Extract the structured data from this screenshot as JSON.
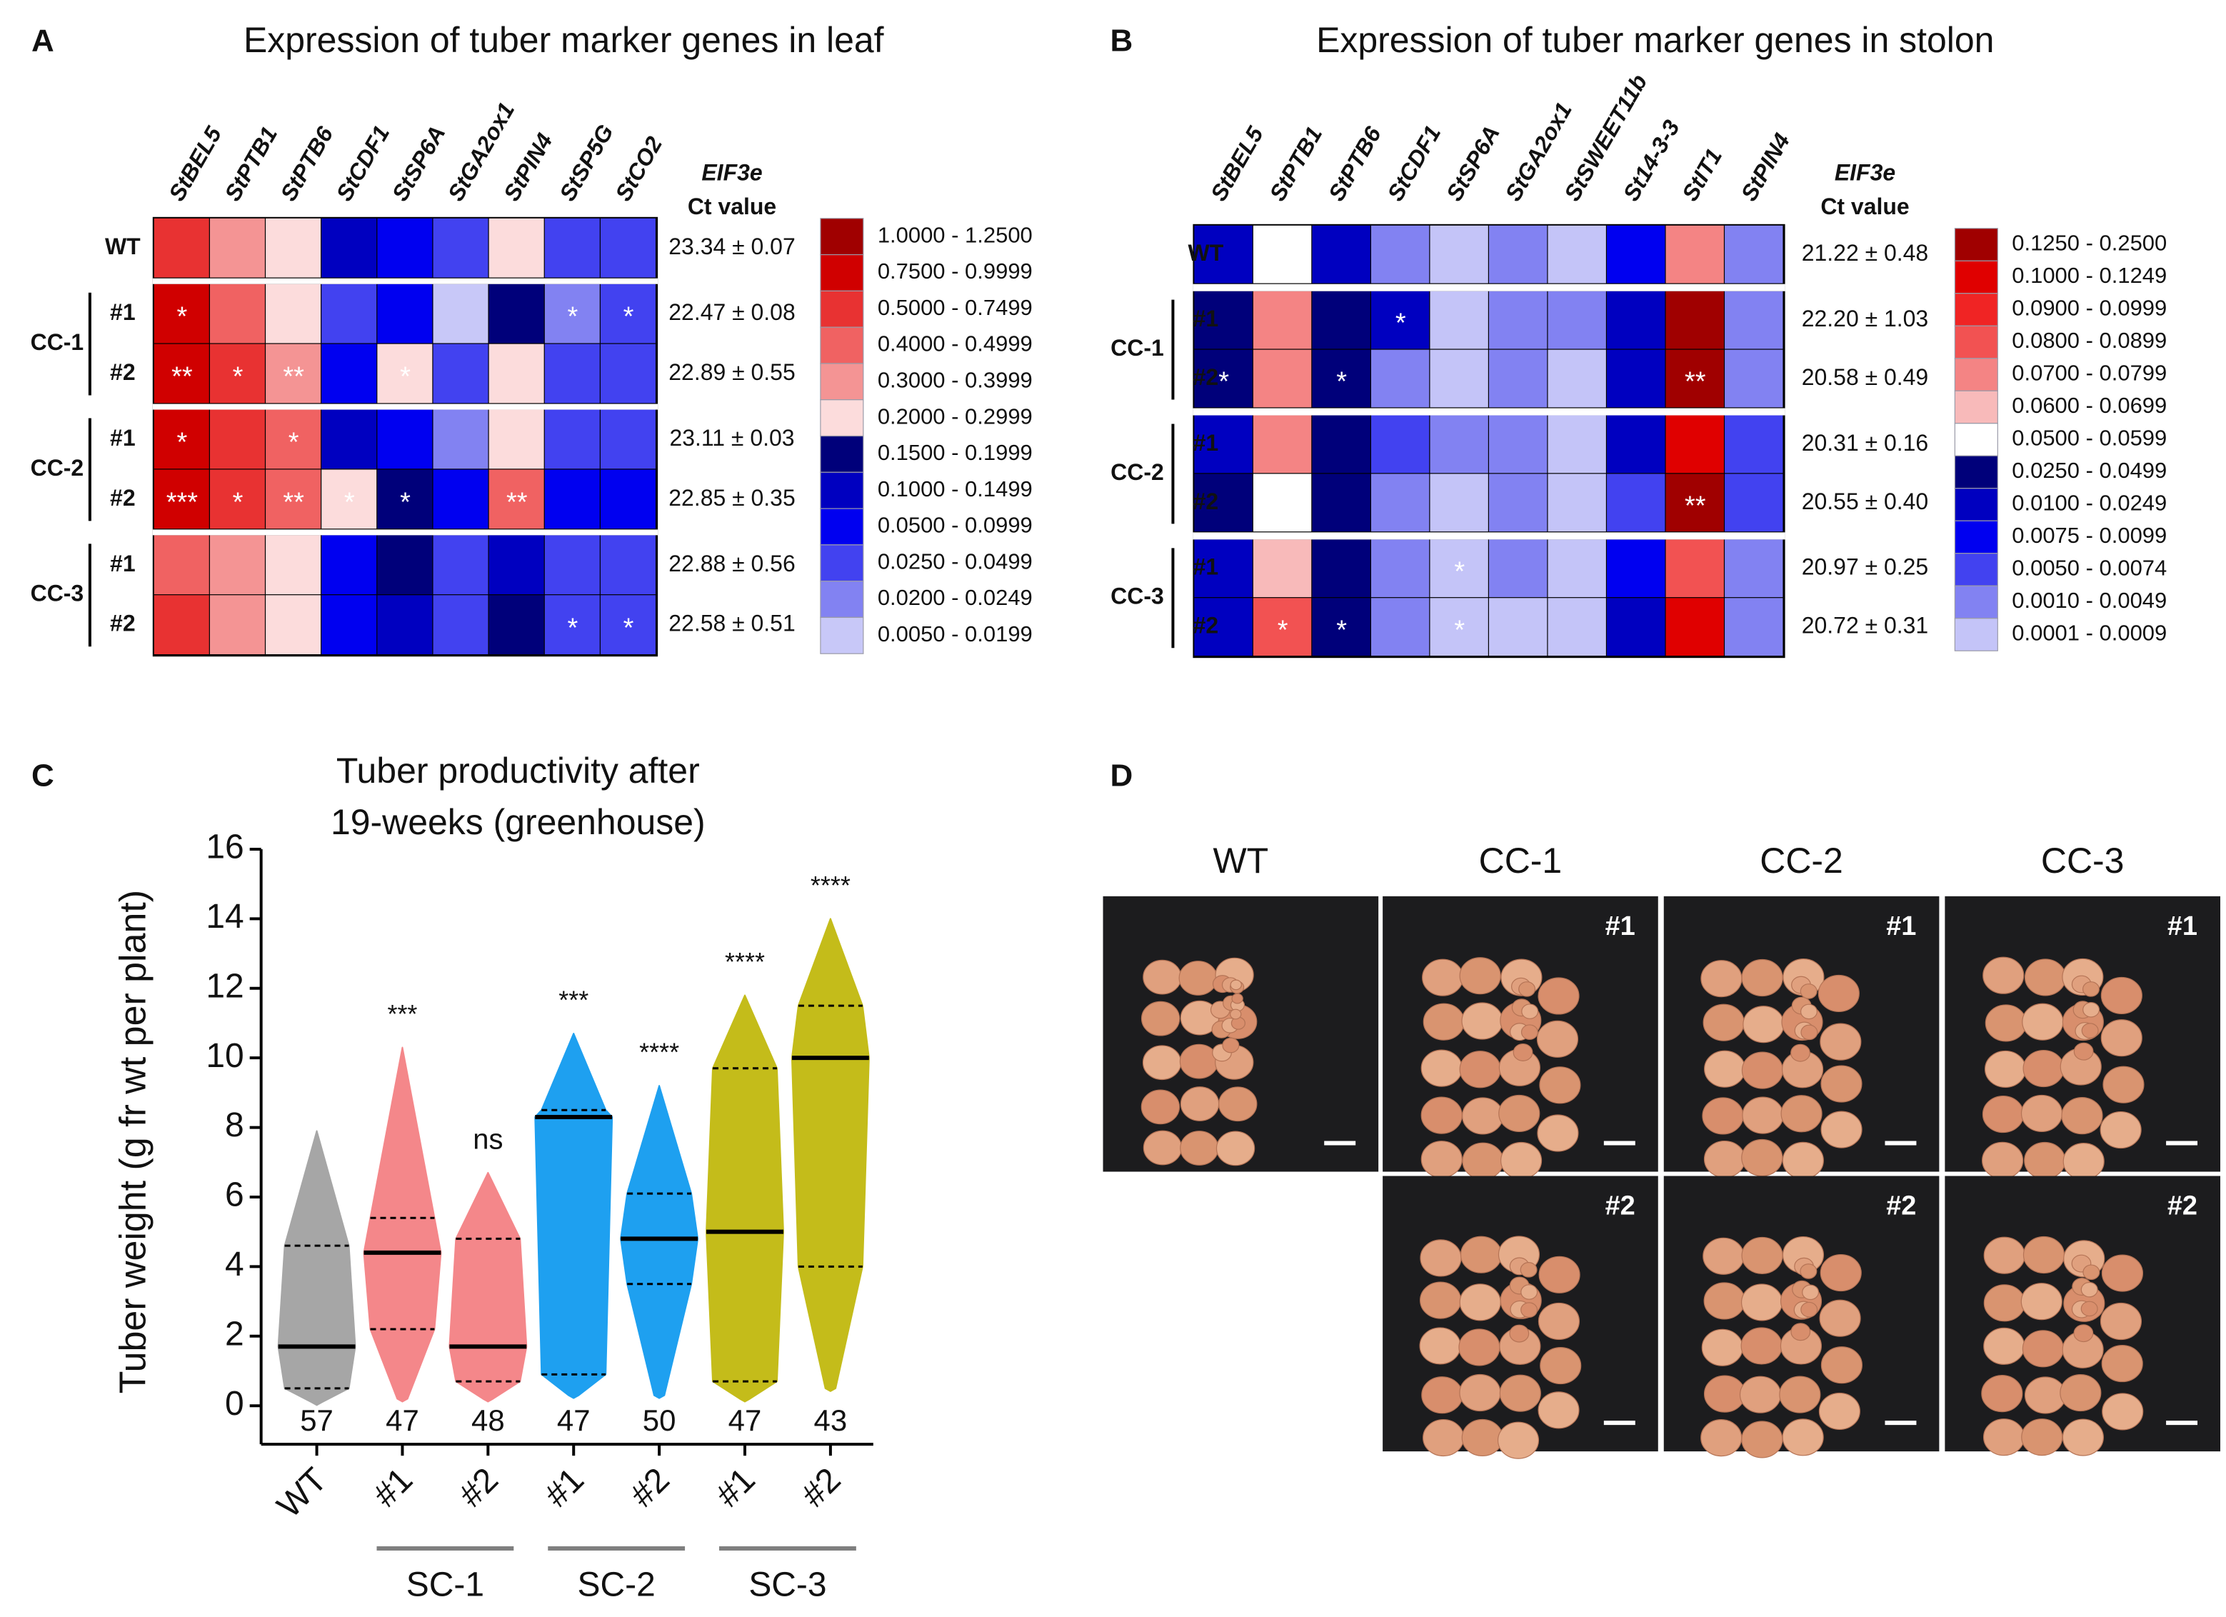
{
  "chart_data": [
    {
      "type": "heatmap",
      "title": "Expression of tuber marker genes in leaf",
      "columns": [
        "StBEL5",
        "StPTB1",
        "StPTB6",
        "StCDF1",
        "StSP6A",
        "StGA2ox1",
        "StPIN4",
        "StSP5G",
        "StCO2"
      ],
      "row_labels": [
        "WT",
        "#1",
        "#2",
        "#1",
        "#2",
        "#1",
        "#2"
      ],
      "group_labels": [
        "CC-1",
        "CC-2",
        "CC-3"
      ],
      "values": [
        [
          0.6,
          0.35,
          0.25,
          0.12,
          0.07,
          0.04,
          0.25,
          0.04,
          0.04
        ],
        [
          0.9,
          0.45,
          0.25,
          0.04,
          0.07,
          0.012,
          0.17,
          0.022,
          0.04
        ],
        [
          0.9,
          0.6,
          0.35,
          0.07,
          0.25,
          0.04,
          0.25,
          0.04,
          0.04
        ],
        [
          0.9,
          0.6,
          0.45,
          0.12,
          0.07,
          0.022,
          0.25,
          0.04,
          0.04
        ],
        [
          0.9,
          0.6,
          0.45,
          0.25,
          0.17,
          0.07,
          0.45,
          0.07,
          0.07
        ],
        [
          0.45,
          0.35,
          0.25,
          0.07,
          0.17,
          0.04,
          0.12,
          0.04,
          0.04
        ],
        [
          0.6,
          0.35,
          0.25,
          0.07,
          0.12,
          0.04,
          0.17,
          0.04,
          0.04
        ]
      ],
      "stars": [
        [
          null,
          null,
          null,
          null,
          null,
          null,
          null,
          null,
          null
        ],
        [
          "*",
          null,
          null,
          null,
          null,
          null,
          null,
          "*",
          "*"
        ],
        [
          "**",
          "*",
          "**",
          null,
          "*",
          null,
          null,
          null,
          null
        ],
        [
          "*",
          null,
          "*",
          null,
          null,
          null,
          null,
          null,
          null
        ],
        [
          "***",
          "*",
          "**",
          "*",
          "*",
          null,
          "**",
          null,
          null
        ],
        [
          null,
          null,
          null,
          null,
          null,
          null,
          null,
          null,
          null
        ],
        [
          null,
          null,
          null,
          null,
          null,
          null,
          null,
          "*",
          "*"
        ]
      ],
      "ct_header": [
        "EIF3e",
        "Ct value"
      ],
      "ct_values": [
        "23.34 ± 0.07",
        "22.47 ± 0.08",
        "22.89 ± 0.55",
        "23.11 ± 0.03",
        "22.85 ± 0.35",
        "22.88 ± 0.56",
        "22.58 ± 0.51"
      ],
      "legend": [
        {
          "label": "1.0000 - 1.2500",
          "color": "#a00000"
        },
        {
          "label": "0.7500 - 0.9999",
          "color": "#d00000"
        },
        {
          "label": "0.5000 - 0.7499",
          "color": "#e83232"
        },
        {
          "label": "0.4000 - 0.4999",
          "color": "#f06262"
        },
        {
          "label": "0.3000 - 0.3999",
          "color": "#f49494"
        },
        {
          "label": "0.2000 - 0.2999",
          "color": "#fcdcdc"
        },
        {
          "label": "0.1500 - 0.1999",
          "color": "#00007a"
        },
        {
          "label": "0.1000 - 0.1499",
          "color": "#0000c0"
        },
        {
          "label": "0.0500 - 0.0999",
          "color": "#0000f0"
        },
        {
          "label": "0.0250 - 0.0499",
          "color": "#4242f0"
        },
        {
          "label": "0.0200 - 0.0249",
          "color": "#8282f2"
        },
        {
          "label": "0.0050 - 0.0199",
          "color": "#c8c8f8"
        }
      ]
    },
    {
      "type": "heatmap",
      "title": "Expression of tuber marker genes in stolon",
      "columns": [
        "StBEL5",
        "StPTB1",
        "StPTB6",
        "StCDF1",
        "StSP6A",
        "StGA2ox1",
        "StSWEET11b",
        "St14-3-3",
        "StIT1",
        "StPIN4"
      ],
      "row_labels": [
        "WT",
        "#1",
        "#2",
        "#1",
        "#2",
        "#1",
        "#2"
      ],
      "group_labels": [
        "CC-1",
        "CC-2",
        "CC-3"
      ],
      "values": [
        [
          0.015,
          0.055,
          0.015,
          0.003,
          0.0005,
          0.003,
          0.0005,
          0.008,
          0.075,
          0.003
        ],
        [
          0.03,
          0.075,
          0.03,
          0.015,
          0.0005,
          0.003,
          0.003,
          0.015,
          0.15,
          0.003
        ],
        [
          0.03,
          0.075,
          0.03,
          0.003,
          0.0005,
          0.003,
          0.0005,
          0.015,
          0.15,
          0.003
        ],
        [
          0.015,
          0.075,
          0.03,
          0.006,
          0.003,
          0.003,
          0.0005,
          0.015,
          0.11,
          0.006
        ],
        [
          0.03,
          0.055,
          0.03,
          0.003,
          0.0005,
          0.003,
          0.0005,
          0.006,
          0.15,
          0.006
        ],
        [
          0.015,
          0.065,
          0.03,
          0.003,
          0.0005,
          0.003,
          0.0005,
          0.008,
          0.085,
          0.003
        ],
        [
          0.015,
          0.085,
          0.03,
          0.003,
          0.0005,
          0.0005,
          0.0005,
          0.015,
          0.11,
          0.003
        ]
      ],
      "stars": [
        [
          null,
          null,
          null,
          null,
          null,
          null,
          null,
          null,
          null,
          null
        ],
        [
          null,
          null,
          null,
          "*",
          null,
          null,
          null,
          null,
          null,
          null
        ],
        [
          "*",
          null,
          "*",
          null,
          null,
          null,
          null,
          null,
          "**",
          null
        ],
        [
          null,
          null,
          null,
          null,
          null,
          null,
          null,
          null,
          null,
          null
        ],
        [
          null,
          null,
          null,
          null,
          null,
          null,
          null,
          null,
          "**",
          null
        ],
        [
          null,
          null,
          null,
          null,
          "*",
          null,
          null,
          null,
          null,
          null
        ],
        [
          null,
          "*",
          "*",
          null,
          "*",
          null,
          null,
          null,
          null,
          null
        ]
      ],
      "ct_header": [
        "EIF3e",
        "Ct value"
      ],
      "ct_values": [
        "21.22 ± 0.48",
        "22.20 ± 1.03",
        "20.58 ± 0.49",
        "20.31 ± 0.16",
        "20.55 ± 0.40",
        "20.97 ± 0.25",
        "20.72 ± 0.31"
      ],
      "legend": [
        {
          "label": "0.1250 - 0.2500",
          "color": "#a00000"
        },
        {
          "label": "0.1000 - 0.1249",
          "color": "#e00000"
        },
        {
          "label": "0.0900 - 0.0999",
          "color": "#f02424"
        },
        {
          "label": "0.0800 - 0.0899",
          "color": "#f25252"
        },
        {
          "label": "0.0700 - 0.0799",
          "color": "#f48484"
        },
        {
          "label": "0.0600 - 0.0699",
          "color": "#f8baba"
        },
        {
          "label": "0.0500 - 0.0599",
          "color": "#ffffff"
        },
        {
          "label": "0.0250 - 0.0499",
          "color": "#00007a"
        },
        {
          "label": "0.0100 - 0.0249",
          "color": "#0000c0"
        },
        {
          "label": "0.0075 - 0.0099",
          "color": "#0000f0"
        },
        {
          "label": "0.0050 - 0.0074",
          "color": "#4242f0"
        },
        {
          "label": "0.0010 - 0.0049",
          "color": "#8282f2"
        },
        {
          "label": "0.0001 - 0.0009",
          "color": "#c4c4f8"
        }
      ]
    },
    {
      "type": "violin",
      "title": [
        "Tuber productivity after",
        "19-weeks (greenhouse)"
      ],
      "ylabel": "Tuber weight (g fr wt per plant)",
      "categories": [
        "WT",
        "#1",
        "#2",
        "#1",
        "#2",
        "#1",
        "#2"
      ],
      "groups": [
        "SC-1",
        "SC-2",
        "SC-3"
      ],
      "colors": [
        "#a6a6a6",
        "#f4878a",
        "#f4878a",
        "#1ea0f0",
        "#1ea0f0",
        "#c4bc1a",
        "#c4bc1a"
      ],
      "min": [
        0.1,
        0.2,
        0.2,
        0.3,
        0.3,
        0.2,
        0.5
      ],
      "q1": [
        0.5,
        2.2,
        0.7,
        0.9,
        3.5,
        0.7,
        4.0
      ],
      "median": [
        1.7,
        4.4,
        1.7,
        8.3,
        4.8,
        5.0,
        10.0
      ],
      "q3": [
        4.6,
        5.4,
        4.8,
        8.5,
        6.1,
        9.7,
        11.5
      ],
      "max": [
        7.9,
        10.3,
        6.7,
        10.7,
        9.2,
        11.8,
        14.0
      ],
      "n": [
        57,
        47,
        48,
        47,
        50,
        47,
        43
      ],
      "significance": [
        null,
        "***",
        "ns",
        "***",
        "****",
        "****",
        "****"
      ],
      "ylim": [
        0,
        16
      ],
      "yticks": [
        0,
        2,
        4,
        6,
        8,
        10,
        12,
        14,
        16
      ]
    }
  ],
  "panel_labels": [
    "A",
    "B",
    "C",
    "D"
  ],
  "photos": {
    "columns": [
      "WT",
      "CC-1",
      "CC-2",
      "CC-3"
    ],
    "replicates": [
      "#1",
      "#2"
    ]
  }
}
